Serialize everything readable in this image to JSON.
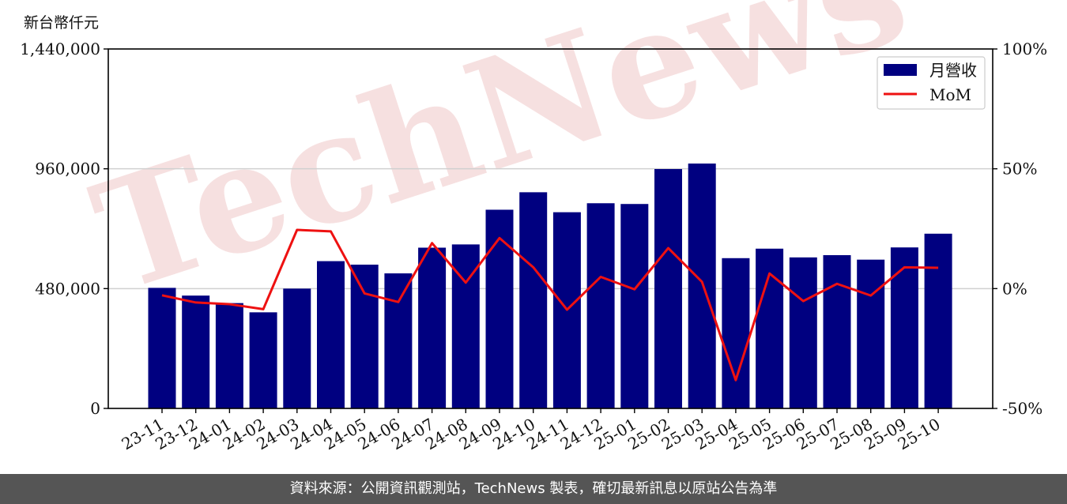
{
  "unit_label": "新台幣仟元",
  "footer_text": "資料來源：公開資訊觀測站，TechNews 製表，確切最新訊息以原站公告為準",
  "watermark": "TechNews",
  "colors": {
    "bar": "#000080",
    "line": "#ee1111",
    "watermark": "#f0c8c8",
    "grid": "#d0d0d0",
    "footer_bg": "#555555"
  },
  "chart_data": {
    "type": "bar",
    "categories": [
      "23-11",
      "23-12",
      "24-01",
      "24-02",
      "24-03",
      "24-04",
      "24-05",
      "24-06",
      "24-07",
      "24-08",
      "24-09",
      "24-10",
      "24-11",
      "24-12",
      "25-01",
      "25-02",
      "25-03",
      "25-04",
      "25-05",
      "25-06",
      "25-07",
      "25-08",
      "25-09",
      "25-10"
    ],
    "series": [
      {
        "name": "月營收",
        "type": "bar",
        "axis": "left",
        "values": [
          483000,
          452000,
          422000,
          385000,
          480000,
          590000,
          576000,
          541000,
          644000,
          657000,
          796000,
          866000,
          786000,
          822000,
          819000,
          959000,
          981000,
          602000,
          640000,
          605000,
          614000,
          596000,
          645000,
          700000
        ]
      },
      {
        "name": "MoM",
        "type": "line",
        "axis": "right",
        "unit": "%",
        "values": [
          -2.8,
          -5.8,
          -6.5,
          -8.6,
          24.5,
          23.9,
          -2.0,
          -5.6,
          19.0,
          2.5,
          21.1,
          8.9,
          -8.8,
          4.9,
          -0.3,
          16.9,
          2.8,
          -38.2,
          6.3,
          -5.2,
          2.0,
          -2.9,
          8.9,
          8.7
        ]
      }
    ],
    "legend": {
      "entries": [
        "月營收",
        "MoM"
      ],
      "position": "top-right"
    },
    "y_left": {
      "ticks": [
        "0",
        "480,000",
        "960,000",
        "1,440,000"
      ],
      "ylim": [
        0,
        1440000
      ]
    },
    "y_right": {
      "ticks": [
        "-50%",
        "0%",
        "50%",
        "100%"
      ],
      "ylim": [
        -50,
        100
      ]
    },
    "grid": "horizontal"
  }
}
